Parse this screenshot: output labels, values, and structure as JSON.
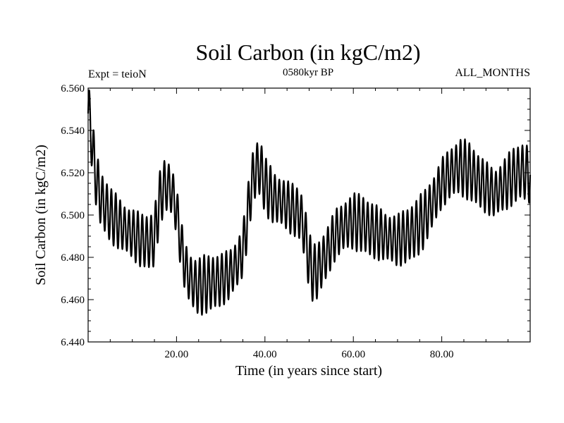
{
  "chart_data": {
    "type": "line",
    "title": "Soil Carbon (in kgC/m2)",
    "subtitle": "0580kyr BP",
    "left_label": "Expt = teioN",
    "right_label": "ALL_MONTHS",
    "xlabel": "Time (in years since start)",
    "ylabel": "Soil Carbon (in kgC/m2)",
    "xlim": [
      0,
      100
    ],
    "ylim": [
      6.44,
      6.56
    ],
    "x_ticks": [
      20,
      40,
      60,
      80
    ],
    "x_tick_labels": [
      "20.00",
      "40.00",
      "60.00",
      "80.00"
    ],
    "y_ticks": [
      6.44,
      6.46,
      6.48,
      6.5,
      6.52,
      6.54,
      6.56
    ],
    "y_tick_labels": [
      "6.440",
      "6.460",
      "6.480",
      "6.500",
      "6.520",
      "6.540",
      "6.560"
    ],
    "series": [
      {
        "name": "Soil Carbon",
        "seasonal_amplitude": 0.012,
        "x": [
          0,
          0.5,
          1,
          2,
          3,
          5,
          8,
          10,
          12,
          14,
          15,
          16,
          17,
          18,
          19,
          20,
          21,
          22,
          23,
          24,
          25,
          26,
          28,
          30,
          32,
          34,
          35,
          36,
          37,
          38,
          39,
          40,
          42,
          44,
          46,
          48,
          49,
          50,
          51,
          52,
          54,
          56,
          58,
          60,
          62,
          64,
          66,
          68,
          70,
          72,
          74,
          76,
          78,
          80,
          82,
          84,
          86,
          88,
          90,
          92,
          94,
          96,
          98,
          100
        ],
        "y": [
          6.548,
          6.545,
          6.53,
          6.515,
          6.507,
          6.5,
          6.494,
          6.491,
          6.488,
          6.487,
          6.489,
          6.505,
          6.513,
          6.514,
          6.511,
          6.502,
          6.486,
          6.475,
          6.47,
          6.467,
          6.466,
          6.467,
          6.468,
          6.469,
          6.472,
          6.478,
          6.483,
          6.498,
          6.515,
          6.522,
          6.522,
          6.514,
          6.508,
          6.506,
          6.503,
          6.5,
          6.492,
          6.478,
          6.472,
          6.474,
          6.482,
          6.491,
          6.495,
          6.497,
          6.496,
          6.493,
          6.491,
          6.489,
          6.488,
          6.49,
          6.493,
          6.498,
          6.506,
          6.515,
          6.52,
          6.523,
          6.521,
          6.517,
          6.513,
          6.51,
          6.514,
          6.518,
          6.521,
          6.519
        ]
      }
    ]
  }
}
